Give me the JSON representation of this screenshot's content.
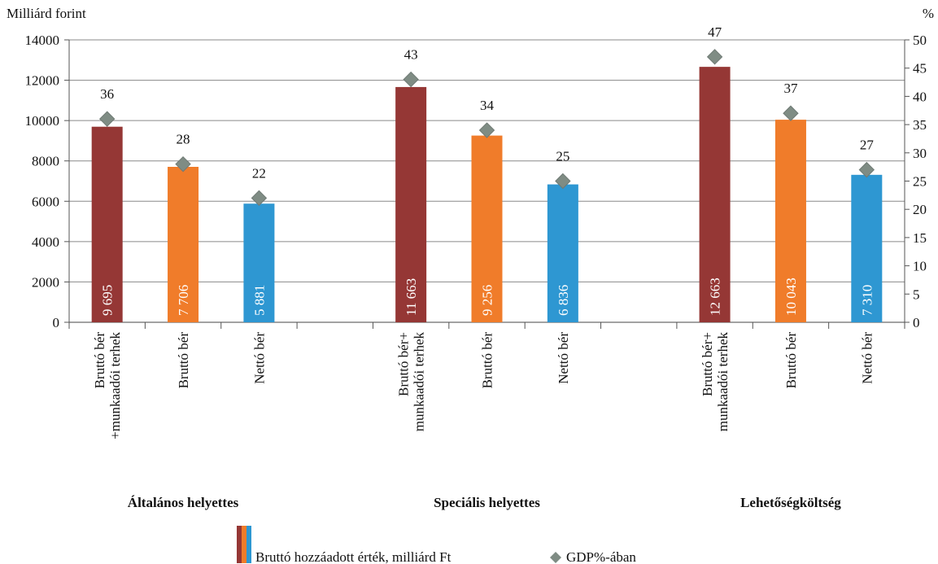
{
  "chart_data": {
    "type": "bar",
    "y_left_label": "Milliárd forint",
    "y_right_label": "%",
    "y_left_range": [
      0,
      14000
    ],
    "y_left_ticks": [
      0,
      2000,
      4000,
      6000,
      8000,
      10000,
      12000,
      14000
    ],
    "y_right_range": [
      0,
      50
    ],
    "y_right_ticks": [
      0,
      5,
      10,
      15,
      20,
      25,
      30,
      35,
      40,
      45,
      50
    ],
    "grid": true,
    "groups": [
      {
        "name": "Általános helyettes",
        "bars": [
          {
            "label_lines": [
              "Bruttó bér",
              "+munkaadói terhek"
            ],
            "value": 9695,
            "value_label": "9 695",
            "gdp_pct": 36,
            "color": "#953735"
          },
          {
            "label_lines": [
              "Bruttó bér"
            ],
            "value": 7706,
            "value_label": "7 706",
            "gdp_pct": 28,
            "color": "#F07C2A"
          },
          {
            "label_lines": [
              "Nettó bér"
            ],
            "value": 5881,
            "value_label": "5 881",
            "gdp_pct": 22,
            "color": "#2E97D2"
          }
        ]
      },
      {
        "name": "Speciális helyettes",
        "bars": [
          {
            "label_lines": [
              "Bruttó bér+",
              "munkaadói terhek"
            ],
            "value": 11663,
            "value_label": "11 663",
            "gdp_pct": 43,
            "color": "#953735"
          },
          {
            "label_lines": [
              "Bruttó bér"
            ],
            "value": 9256,
            "value_label": "9 256",
            "gdp_pct": 34,
            "color": "#F07C2A"
          },
          {
            "label_lines": [
              "Nettó bér"
            ],
            "value": 6836,
            "value_label": "6 836",
            "gdp_pct": 25,
            "color": "#2E97D2"
          }
        ]
      },
      {
        "name": "Lehetőségköltség",
        "bars": [
          {
            "label_lines": [
              "Bruttó bér+",
              "munkaadói terhek"
            ],
            "value": 12663,
            "value_label": "12 663",
            "gdp_pct": 47,
            "color": "#953735"
          },
          {
            "label_lines": [
              "Bruttó bér"
            ],
            "value": 10043,
            "value_label": "10 043",
            "gdp_pct": 37,
            "color": "#F07C2A"
          },
          {
            "label_lines": [
              "Nettó bér"
            ],
            "value": 7310,
            "value_label": "7 310",
            "gdp_pct": 27,
            "color": "#2E97D2"
          }
        ]
      }
    ],
    "series": [
      {
        "name": "Bruttó hozzáadott érték, milliárd Ft",
        "kind": "bar"
      },
      {
        "name": "GDP%-ában",
        "kind": "marker",
        "marker_color": "#7F8C84"
      }
    ],
    "legend_position": "bottom"
  }
}
